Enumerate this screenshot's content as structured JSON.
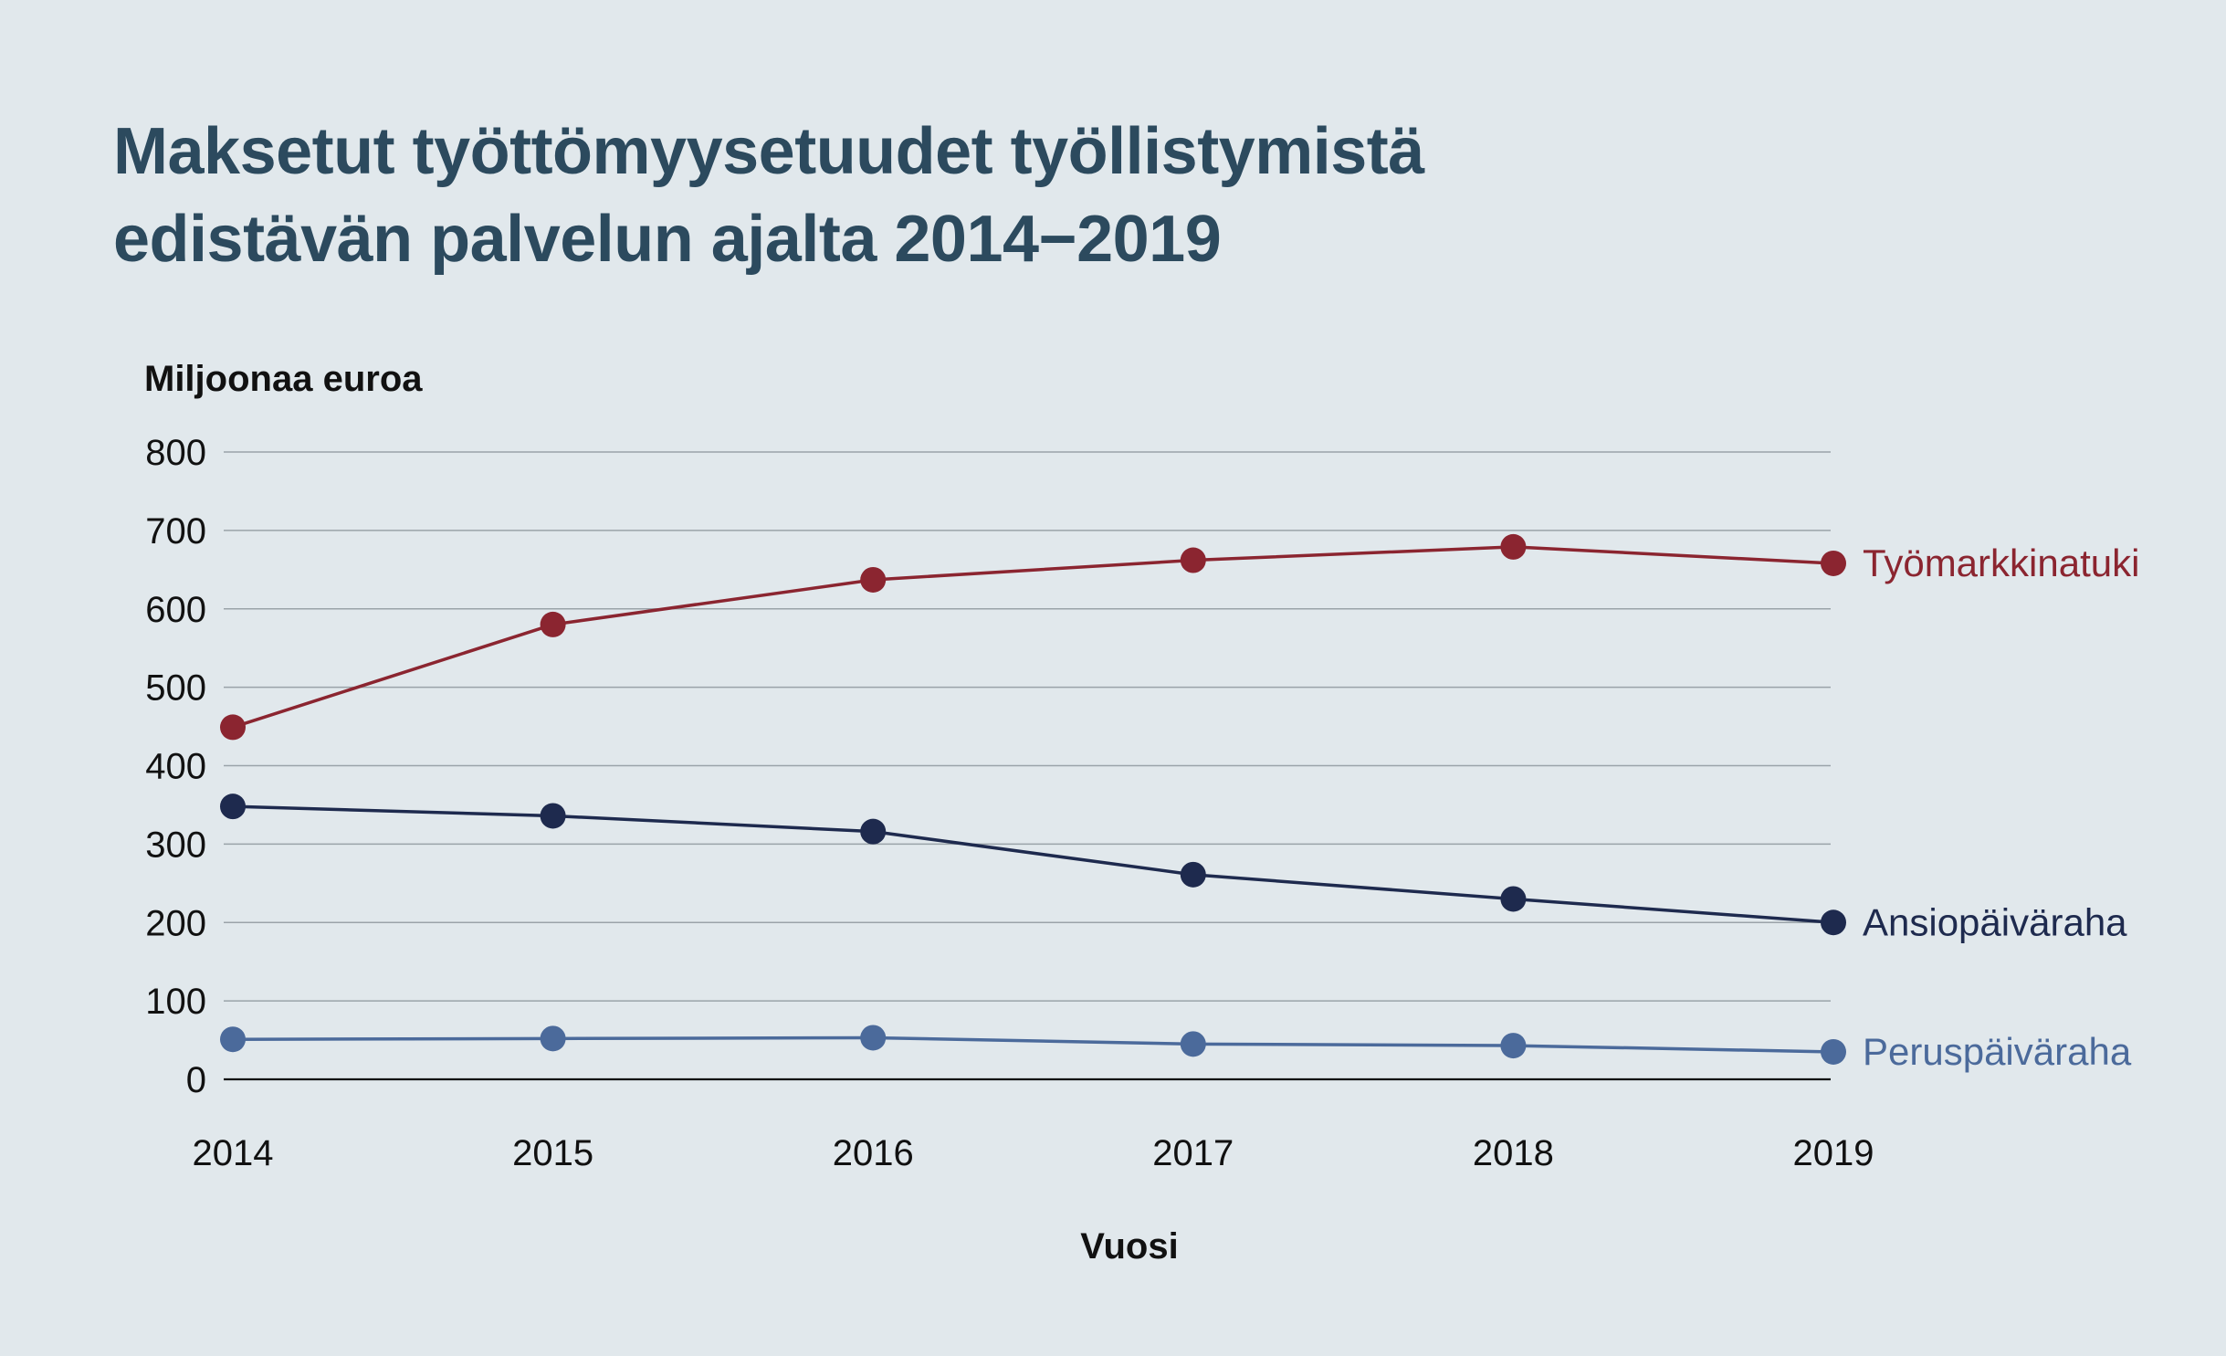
{
  "chart_data": {
    "type": "line",
    "title_lines": [
      "Maksetut työttömyysetuudet työllistymistä",
      "edistävän palvelun ajalta 2014−2019"
    ],
    "ylabel": "Miljoonaa euroa",
    "xlabel": "Vuosi",
    "x": [
      2014,
      2015,
      2016,
      2017,
      2018,
      2019
    ],
    "yticks": [
      0,
      100,
      200,
      300,
      400,
      500,
      600,
      700,
      800
    ],
    "ylim": [
      0,
      800
    ],
    "grid": true,
    "legend": "end-of-line labels",
    "series": [
      {
        "name": "Työmarkkinatuki",
        "color": "#8b2530",
        "values": [
          449,
          580,
          637,
          662,
          679,
          658
        ]
      },
      {
        "name": "Ansiopäiväraha",
        "color": "#1e2a4e",
        "values": [
          348,
          336,
          316,
          261,
          230,
          200
        ]
      },
      {
        "name": "Peruspäiväraha",
        "color": "#4b6a9b",
        "values": [
          51,
          52,
          53,
          45,
          43,
          35
        ]
      }
    ]
  }
}
